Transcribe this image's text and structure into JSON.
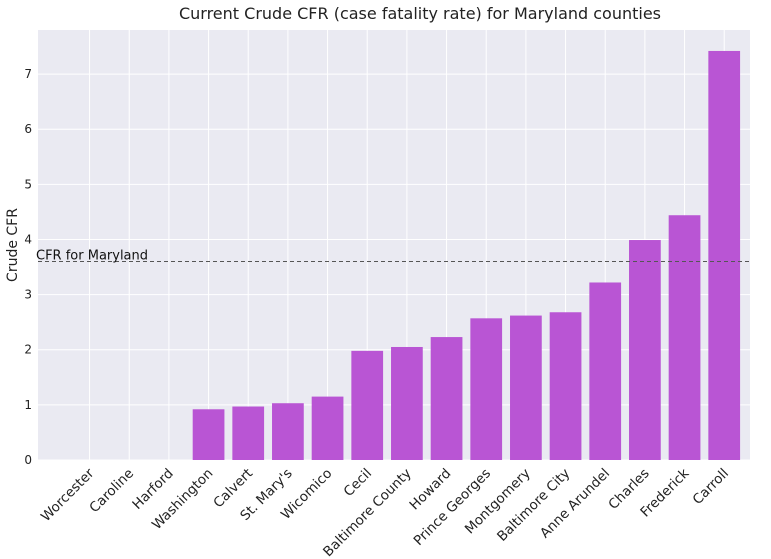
{
  "chart_data": {
    "type": "bar",
    "title": "Current Crude CFR (case fatality rate) for Maryland counties",
    "xlabel": "",
    "ylabel": "Crude CFR",
    "ylim": [
      0,
      7.8
    ],
    "yticks": [
      0,
      1,
      2,
      3,
      4,
      5,
      6,
      7
    ],
    "grid": true,
    "bar_color": "#b955d4",
    "background_color": "#eaeaf2",
    "categories": [
      "Worcester",
      "Caroline",
      "Harford",
      "Washington",
      "Calvert",
      "St. Mary's",
      "Wicomico",
      "Cecil",
      "Baltimore County",
      "Howard",
      "Prince Georges",
      "Montgomery",
      "Baltimore City",
      "Anne Arundel",
      "Charles",
      "Frederick",
      "Carroll"
    ],
    "values": [
      0,
      0,
      0,
      0.92,
      0.97,
      1.03,
      1.15,
      1.98,
      2.05,
      2.23,
      2.57,
      2.62,
      2.68,
      3.22,
      3.99,
      4.44,
      7.42
    ],
    "reference_line": {
      "label": "CFR for Maryland",
      "value": 3.6,
      "style": "dashed"
    }
  }
}
